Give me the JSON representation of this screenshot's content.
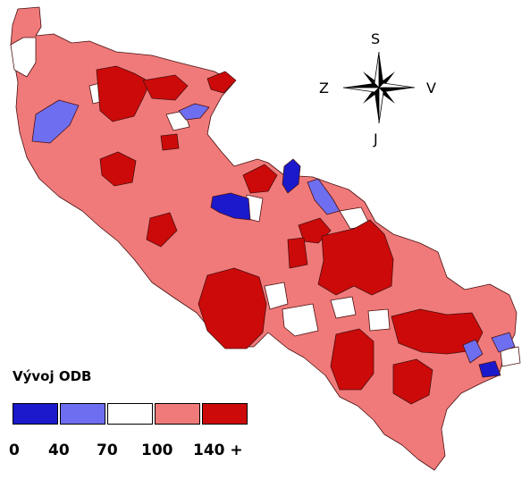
{
  "legend": {
    "title": "Vývoj  ODB",
    "colors": [
      "#1a1acc",
      "#6e6ef0",
      "#ffffff",
      "#f07a7a",
      "#cc0a0a"
    ],
    "labels": [
      "0",
      "40",
      "70",
      "100",
      "140 +"
    ]
  },
  "compass": {
    "north": "S",
    "south": "J",
    "west": "Z",
    "east": "V"
  },
  "colors": {
    "very_low": "#1a1acc",
    "low": "#6e6ef0",
    "neutral": "#ffffff",
    "high": "#f07a7a",
    "very_high": "#cc0a0a",
    "border": "#4a1010"
  }
}
